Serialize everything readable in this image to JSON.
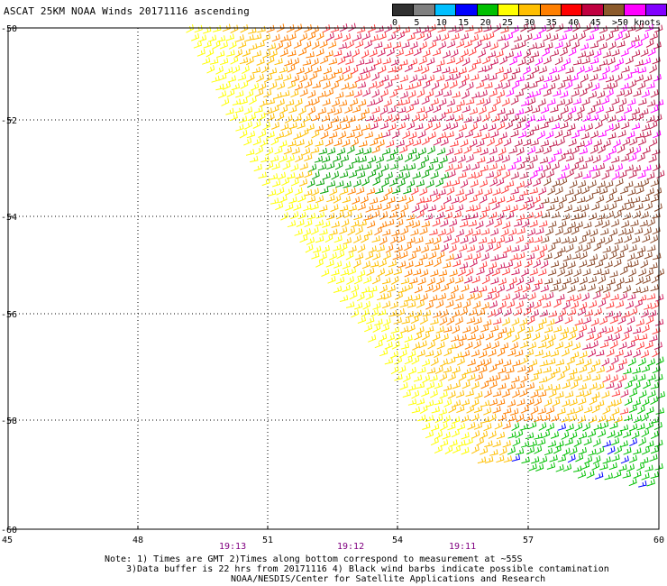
{
  "title": "ASCAT 25KM NOAA Winds 20171116 ascending",
  "legend": {
    "colors": [
      "#303030",
      "#7f7f7f",
      "#00bfff",
      "#0000ff",
      "#00c000",
      "#ffff00",
      "#ffbf00",
      "#ff7f00",
      "#ff0000",
      "#c00040",
      "#8b5a2b",
      "#ff00ff",
      "#8000ff"
    ],
    "labels": [
      "0",
      "5",
      "10",
      "15",
      "20",
      "25",
      "30",
      "35",
      "40",
      "45",
      ">50 knots"
    ]
  },
  "axes": {
    "lon_labels": [
      "45",
      "48",
      "51",
      "54",
      "57",
      "60"
    ],
    "lat_labels": [
      "-50",
      "-52",
      "-54",
      "-56",
      "-58",
      "-60"
    ],
    "times": [
      "19:13",
      "19:12",
      "19:11"
    ]
  },
  "notes": [
    "Note: 1) Times are GMT 2)Times along bottom correspond to measurement at ~55S",
    "3)Data buffer is 22 hrs from 20171116 4) Black wind barbs indicate possible contamination",
    "NOAA/NESDIS/Center for Satellite Applications and Research"
  ]
}
